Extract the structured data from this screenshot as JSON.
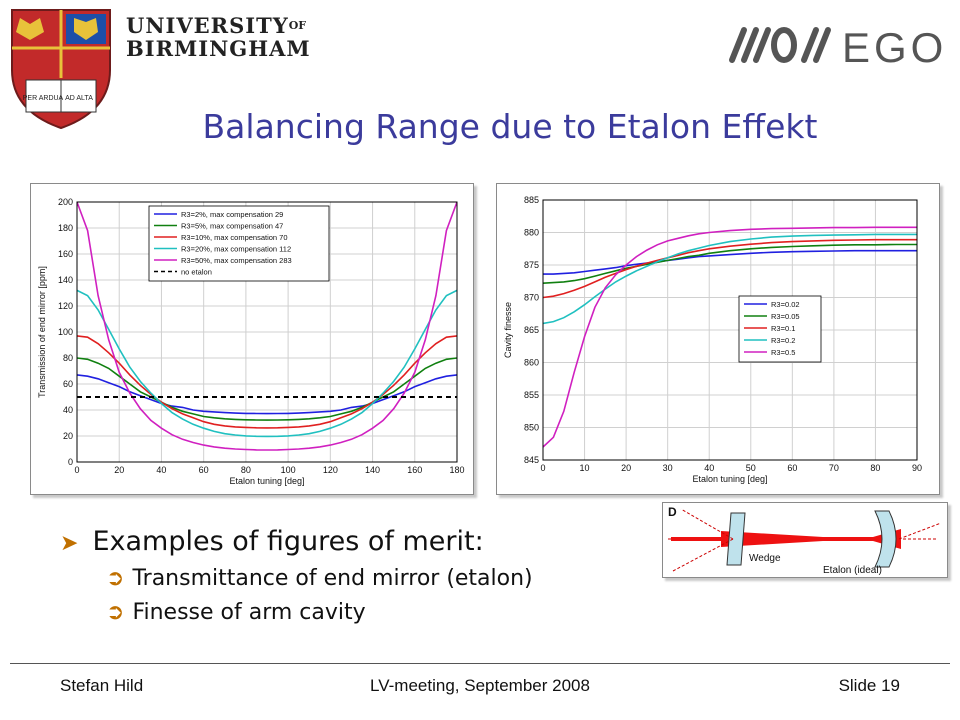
{
  "header": {
    "university_line1": "UNIVERSITY",
    "university_of": "OF",
    "university_line2": "BIRMINGHAM",
    "crest_text_left": "PER ARDUA",
    "crest_text_right": "AD ALTA",
    "partner_logo": "EGO"
  },
  "slide": {
    "title": "Balancing Range due to Etalon Effekt",
    "bullets": {
      "main": "Examples of figures of merit:",
      "sub": [
        "Transmittance of end mirror (etalon)",
        "Finesse of arm cavity"
      ]
    }
  },
  "footer": {
    "author": "Stefan Hild",
    "event": "LV-meeting, September 2008",
    "slide_number": "Slide 19"
  },
  "colors": {
    "title": "#3b3b9c",
    "bullet_arrow": "#c07000"
  },
  "chart_data": [
    {
      "type": "line",
      "xlabel": "Etalon tuning [deg]",
      "ylabel": "Transmission of end mirror [ppm]",
      "xlim": [
        0,
        180
      ],
      "ylim": [
        0,
        200
      ],
      "xticks": [
        0,
        20,
        40,
        60,
        80,
        100,
        120,
        140,
        160,
        180
      ],
      "yticks": [
        0,
        20,
        40,
        60,
        80,
        100,
        120,
        140,
        160,
        180,
        200
      ],
      "grid": true,
      "legend_position": "top",
      "x": [
        0,
        5,
        10,
        15,
        20,
        25,
        30,
        35,
        40,
        45,
        50,
        55,
        60,
        65,
        70,
        75,
        80,
        85,
        90,
        95,
        100,
        105,
        110,
        115,
        120,
        125,
        130,
        135,
        140,
        145,
        150,
        155,
        160,
        165,
        170,
        175,
        180
      ],
      "series": [
        {
          "name": "R3=2%, max compensation 29",
          "color": "#2020e0",
          "style": "solid",
          "values": [
            67,
            66,
            64,
            61,
            58,
            54,
            51,
            48,
            45,
            43,
            42,
            40,
            39,
            38.5,
            38,
            37.6,
            37.4,
            37.3,
            37.2,
            37.3,
            37.4,
            37.6,
            38,
            38.5,
            39,
            40,
            42,
            43,
            45,
            48,
            51,
            54,
            58,
            61,
            64,
            66,
            67
          ]
        },
        {
          "name": "R3=5%, max compensation 47",
          "color": "#108010",
          "style": "solid",
          "values": [
            80,
            79,
            76,
            72,
            66,
            60,
            54,
            50,
            46,
            42,
            39,
            37,
            35,
            34,
            33.2,
            32.8,
            32.5,
            32.3,
            32.2,
            32.3,
            32.5,
            32.8,
            33.2,
            34,
            35,
            37,
            39,
            42,
            46,
            50,
            54,
            60,
            66,
            72,
            76,
            79,
            80
          ]
        },
        {
          "name": "R3=10%, max compensation 70",
          "color": "#e02020",
          "style": "solid",
          "values": [
            97,
            96,
            91,
            84,
            76,
            67,
            59,
            52,
            46,
            41,
            37,
            34,
            31,
            29,
            27.8,
            27,
            26.6,
            26.3,
            26.2,
            26.3,
            26.6,
            27,
            27.8,
            29,
            31,
            34,
            37,
            41,
            46,
            52,
            59,
            67,
            76,
            84,
            91,
            96,
            97
          ]
        },
        {
          "name": "R3=20%, max compensation 112",
          "color": "#20c0c0",
          "style": "solid",
          "values": [
            132,
            128,
            117,
            102,
            87,
            73,
            62,
            53,
            45,
            38,
            33,
            29,
            26,
            23.5,
            21.8,
            20.8,
            20.1,
            19.8,
            19.7,
            19.8,
            20.1,
            20.8,
            21.8,
            23.5,
            26,
            29,
            33,
            38,
            45,
            53,
            62,
            73,
            87,
            102,
            117,
            128,
            132
          ]
        },
        {
          "name": "R3=50%, max compensation 283",
          "color": "#d020c0",
          "style": "solid",
          "values": [
            200,
            178,
            128,
            94,
            69,
            53,
            41,
            32,
            26,
            21,
            17.5,
            15,
            13,
            11.6,
            10.6,
            10,
            9.6,
            9.3,
            9.2,
            9.3,
            9.6,
            10,
            10.6,
            11.6,
            13,
            15,
            17.5,
            21,
            26,
            32,
            41,
            53,
            69,
            94,
            128,
            178,
            200
          ]
        },
        {
          "name": "no etalon",
          "color": "#000000",
          "style": "dashed",
          "values": [
            50,
            50,
            50,
            50,
            50,
            50,
            50,
            50,
            50,
            50,
            50,
            50,
            50,
            50,
            50,
            50,
            50,
            50,
            50,
            50,
            50,
            50,
            50,
            50,
            50,
            50,
            50,
            50,
            50,
            50,
            50,
            50,
            50,
            50,
            50,
            50,
            50
          ]
        }
      ]
    },
    {
      "type": "line",
      "xlabel": "Etalon tuning [deg]",
      "ylabel": "Cavity finesse",
      "xlim": [
        0,
        90
      ],
      "ylim": [
        845,
        885
      ],
      "xticks": [
        0,
        10,
        20,
        30,
        40,
        50,
        60,
        70,
        80,
        90
      ],
      "yticks": [
        845,
        850,
        855,
        860,
        865,
        870,
        875,
        880,
        885
      ],
      "grid": true,
      "legend_position": "right",
      "x": [
        0,
        2.5,
        5,
        7.5,
        10,
        12.5,
        15,
        17.5,
        20,
        22.5,
        25,
        27.5,
        30,
        32.5,
        35,
        37.5,
        40,
        45,
        50,
        55,
        60,
        65,
        70,
        75,
        80,
        85,
        90
      ],
      "series": [
        {
          "name": "R3=0.02",
          "color": "#2020e0",
          "style": "solid",
          "values": [
            873.6,
            873.6,
            873.7,
            873.8,
            874.0,
            874.2,
            874.4,
            874.6,
            874.9,
            875.1,
            875.3,
            875.5,
            875.7,
            875.9,
            876.1,
            876.3,
            876.4,
            876.6,
            876.8,
            876.95,
            877.05,
            877.1,
            877.15,
            877.2,
            877.2,
            877.2,
            877.2
          ]
        },
        {
          "name": "R3=0.05",
          "color": "#108010",
          "style": "solid",
          "values": [
            872.2,
            872.3,
            872.4,
            872.6,
            872.9,
            873.3,
            873.7,
            874.1,
            874.5,
            874.8,
            875.1,
            875.4,
            875.7,
            876.0,
            876.3,
            876.5,
            876.8,
            877.2,
            877.5,
            877.7,
            877.85,
            877.95,
            878.05,
            878.1,
            878.1,
            878.15,
            878.15
          ]
        },
        {
          "name": "R3=0.1",
          "color": "#e02020",
          "style": "solid",
          "values": [
            870.0,
            870.2,
            870.6,
            871.1,
            871.7,
            872.4,
            873.1,
            873.7,
            874.3,
            874.8,
            875.3,
            875.7,
            876.1,
            876.5,
            876.9,
            877.2,
            877.5,
            877.9,
            878.2,
            878.45,
            878.6,
            878.7,
            878.8,
            878.85,
            878.9,
            878.9,
            878.9
          ]
        },
        {
          "name": "R3=0.2",
          "color": "#20c0c0",
          "style": "solid",
          "values": [
            866.0,
            866.3,
            866.9,
            867.8,
            868.9,
            870.1,
            871.3,
            872.4,
            873.3,
            874.1,
            874.8,
            875.5,
            876.1,
            876.7,
            877.2,
            877.6,
            878.0,
            878.6,
            879.0,
            879.3,
            879.45,
            879.55,
            879.6,
            879.65,
            879.7,
            879.7,
            879.7
          ]
        },
        {
          "name": "R3=0.5",
          "color": "#d020c0",
          "style": "solid",
          "values": [
            847.0,
            848.5,
            852.5,
            858.5,
            864.0,
            868.5,
            871.5,
            873.5,
            875.0,
            876.3,
            877.3,
            878.1,
            878.7,
            879.1,
            879.5,
            879.8,
            880.0,
            880.3,
            880.5,
            880.6,
            880.65,
            880.7,
            880.75,
            880.75,
            880.8,
            880.8,
            880.8
          ]
        }
      ]
    }
  ],
  "diagram": {
    "label": "D",
    "wedge_label": "Wedge",
    "etalon_label": "Etalon (ideal)"
  }
}
